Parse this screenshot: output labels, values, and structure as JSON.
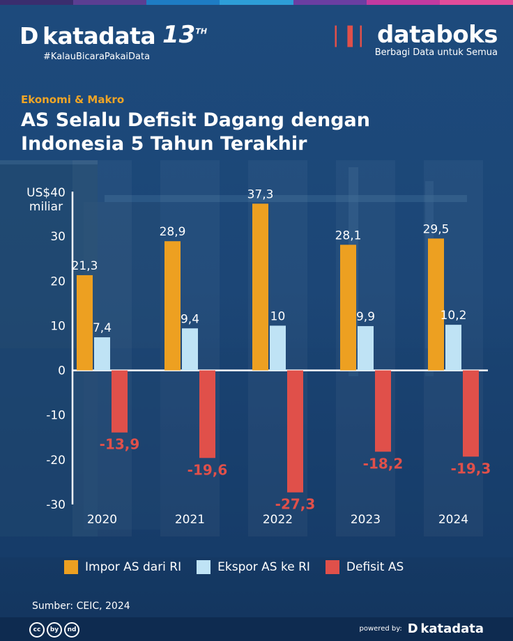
{
  "header": {
    "katadata_brand": "katadata",
    "katadata_anniversary": "13",
    "katadata_anniversary_suffix": "TH",
    "katadata_tag": "#KalauBicaraPakaiData",
    "databoks_brand": "databoks",
    "databoks_tag": "Berbagi Data untuk Semua"
  },
  "category": "Ekonomi & Makro",
  "title": "AS Selalu Defisit Dagang dengan Indonesia 5 Tahun Terakhir",
  "source": "Sumber: CEIC, 2024",
  "footer": {
    "powered_label": "powered by:",
    "powered_brand": "katadata",
    "license_icons": [
      "cc",
      "by",
      "nd"
    ]
  },
  "colors": {
    "impor": "#eda021",
    "ekspor": "#bfe3f5",
    "defisit": "#e0504a",
    "accent": "#f0a526",
    "stripe": [
      "#3a2d6e",
      "#5b3e92",
      "#1e7cc4",
      "#2d9ed8",
      "#6a3ea2",
      "#c23aa0",
      "#e24c9a"
    ]
  },
  "chart_data": {
    "type": "bar",
    "title": "AS Selalu Defisit Dagang dengan Indonesia 5 Tahun Terakhir",
    "ylabel": "US$ miliar",
    "y_unit_top": "US$40",
    "y_unit_bottom": "miliar",
    "ylim": [
      -30,
      40
    ],
    "yticks": [
      "-30",
      "-20",
      "-10",
      "0",
      "10",
      "20",
      "30"
    ],
    "ytick_values": [
      -30,
      -20,
      -10,
      0,
      10,
      20,
      30
    ],
    "categories": [
      "2020",
      "2021",
      "2022",
      "2023",
      "2024"
    ],
    "series": [
      {
        "name": "Impor AS dari RI",
        "key": "impor",
        "values": [
          21.3,
          28.9,
          37.3,
          28.1,
          29.5
        ],
        "labels": [
          "21,3",
          "28,9",
          "37,3",
          "28,1",
          "29,5"
        ]
      },
      {
        "name": "Ekspor AS ke RI",
        "key": "ekspor",
        "values": [
          7.4,
          9.4,
          10,
          9.9,
          10.2
        ],
        "labels": [
          "7,4",
          "9,4",
          "10",
          "9,9",
          "10,2"
        ]
      },
      {
        "name": "Defisit AS",
        "key": "defisit",
        "values": [
          -13.9,
          -19.6,
          -27.3,
          -18.2,
          -19.3
        ],
        "labels": [
          "-13,9",
          "-19,6",
          "-27,3",
          "-18,2",
          "-19,3"
        ]
      }
    ],
    "legend_position": "bottom"
  }
}
